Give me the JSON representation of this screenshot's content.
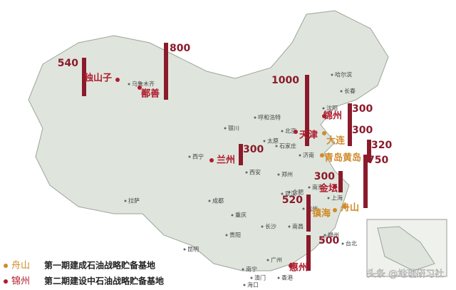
{
  "sites": [
    {
      "name": "独山子",
      "value": 540,
      "color": "#b01c2e"
    },
    {
      "name": "鄯善",
      "value": 800,
      "color": "#b01c2e"
    },
    {
      "name": "天津",
      "value": 1000,
      "color": "#b01c2e"
    },
    {
      "name": "锦州",
      "value": 300,
      "color": "#b01c2e"
    },
    {
      "name": "大连",
      "value": 300,
      "color": "#d08a2a"
    },
    {
      "name": "青岛黄岛",
      "value": 320,
      "color": "#d08a2a"
    },
    {
      "name": "兰州",
      "value": 300,
      "color": "#b01c2e"
    },
    {
      "name": "金坛",
      "value": 300,
      "color": "#b01c2e"
    },
    {
      "name": "舟山",
      "value": 750,
      "color": "#d08a2a"
    },
    {
      "name": "镇海",
      "value": 520,
      "color": "#d08a2a"
    },
    {
      "name": "惠州",
      "value": 500,
      "color": "#b01c2e"
    }
  ],
  "cities": [
    "乌鲁木齐",
    "哈尔滨",
    "长春",
    "沈阳",
    "呼和浩特",
    "北京",
    "银川",
    "太原",
    "石家庄",
    "济南",
    "西宁",
    "西安",
    "郑州",
    "拉萨",
    "成都",
    "重庆",
    "武汉",
    "合肥",
    "南京",
    "上海",
    "杭州",
    "长沙",
    "南昌",
    "贵阳",
    "福州",
    "台北",
    "昆明",
    "南宁",
    "广州",
    "澳门",
    "香港",
    "海口"
  ],
  "legend": [
    {
      "label": "舟山",
      "text": "第一期建成石油战略贮备基地",
      "color": "#d08a2a"
    },
    {
      "label": "锦州",
      "text": "第二期建设中石油战略贮备基地",
      "color": "#b01c2e"
    }
  ],
  "watermark": "头条 @地理研习社"
}
